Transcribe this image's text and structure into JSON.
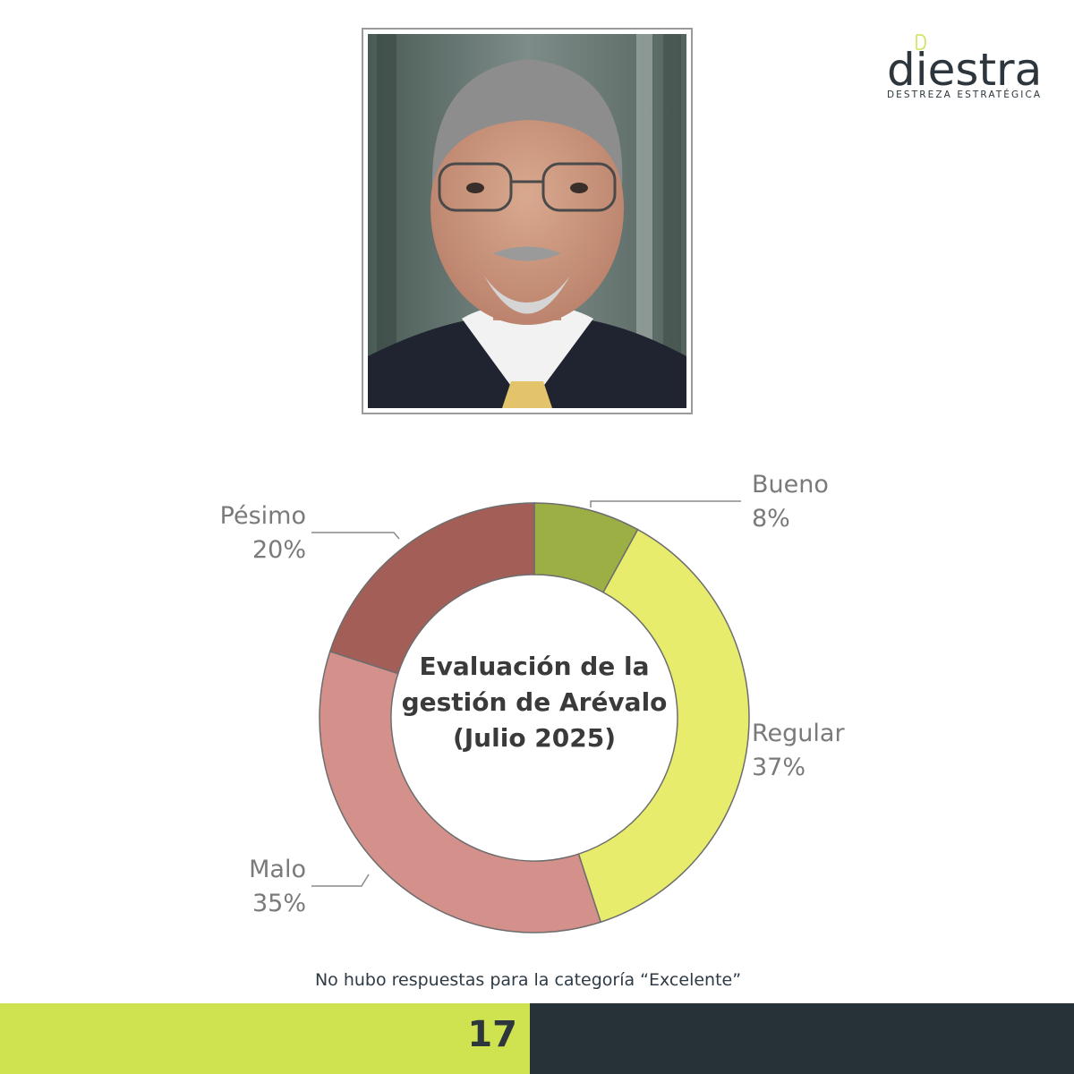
{
  "logo": {
    "wordmark": "diestra",
    "tagline": "DESTREZA ESTRATÉGICA",
    "accent_color": "#cfe250"
  },
  "chart_data": {
    "type": "pie",
    "donut": true,
    "title": "Evaluación de la gestión de Arévalo (Julio 2025)",
    "categories": [
      "Bueno",
      "Regular",
      "Malo",
      "Pésimo"
    ],
    "values": [
      8,
      37,
      35,
      20
    ],
    "value_labels": [
      "8%",
      "37%",
      "35%",
      "20%"
    ],
    "colors": [
      "#9caf45",
      "#e8ec6c",
      "#d4908a",
      "#a35e58"
    ],
    "legend": "callouts"
  },
  "footnote": "No hubo respuestas para la categoría “Excelente”",
  "footer": {
    "page_number": "17",
    "left_color": "#cfe250",
    "right_color": "#263238"
  }
}
